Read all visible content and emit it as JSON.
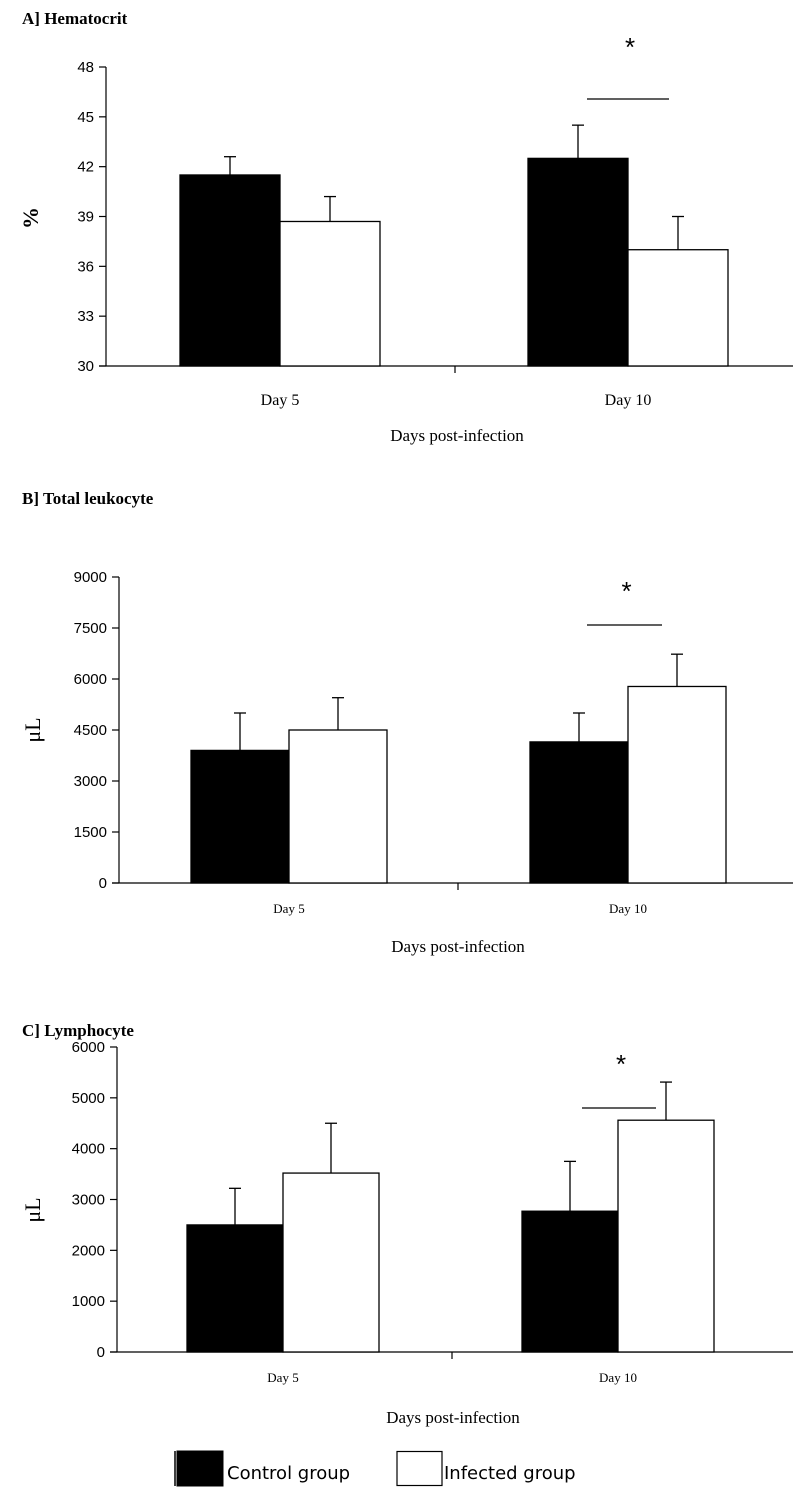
{
  "legend": {
    "items": [
      {
        "label": "Control group",
        "color": "#000000"
      },
      {
        "label": "Infected group",
        "color": "#ffffff"
      }
    ]
  },
  "chart_data": [
    {
      "type": "bar",
      "title": "A] Hematocrit",
      "xlabel": "Days post-infection",
      "ylabel": "%",
      "categories": [
        "Day 5",
        "Day 10"
      ],
      "ylim": [
        30,
        48
      ],
      "yticks": [
        30,
        33,
        36,
        39,
        42,
        45,
        48
      ],
      "series": [
        {
          "name": "Control group",
          "color": "#000000",
          "values": [
            41.5,
            42.5
          ],
          "errors": [
            1.1,
            2.0
          ]
        },
        {
          "name": "Infected group",
          "color": "#ffffff",
          "values": [
            38.7,
            37.0
          ],
          "errors": [
            1.5,
            2.0
          ]
        }
      ],
      "significance": [
        {
          "category": "Day 10",
          "label": "*"
        }
      ]
    },
    {
      "type": "bar",
      "title": "B] Total leukocyte",
      "xlabel": "Days post-infection",
      "ylabel": "μL",
      "categories": [
        "Day 5",
        "Day 10"
      ],
      "ylim": [
        0,
        9000
      ],
      "yticks": [
        0,
        1500,
        3000,
        4500,
        6000,
        7500,
        9000
      ],
      "series": [
        {
          "name": "Control group",
          "color": "#000000",
          "values": [
            3900,
            4150
          ],
          "errors": [
            1100,
            850
          ]
        },
        {
          "name": "Infected group",
          "color": "#ffffff",
          "values": [
            4500,
            5780
          ],
          "errors": [
            950,
            950
          ]
        }
      ],
      "significance": [
        {
          "category": "Day 10",
          "label": "*"
        }
      ]
    },
    {
      "type": "bar",
      "title": "C] Lymphocyte",
      "xlabel": "Days post-infection",
      "ylabel": "μL",
      "categories": [
        "Day 5",
        "Day 10"
      ],
      "ylim": [
        0,
        6000
      ],
      "yticks": [
        0,
        1000,
        2000,
        3000,
        4000,
        5000,
        6000
      ],
      "series": [
        {
          "name": "Control group",
          "color": "#000000",
          "values": [
            2500,
            2770
          ],
          "errors": [
            720,
            980
          ]
        },
        {
          "name": "Infected group",
          "color": "#ffffff",
          "values": [
            3520,
            4560
          ],
          "errors": [
            980,
            750
          ]
        }
      ],
      "significance": [
        {
          "category": "Day 10",
          "label": "*"
        }
      ]
    }
  ]
}
